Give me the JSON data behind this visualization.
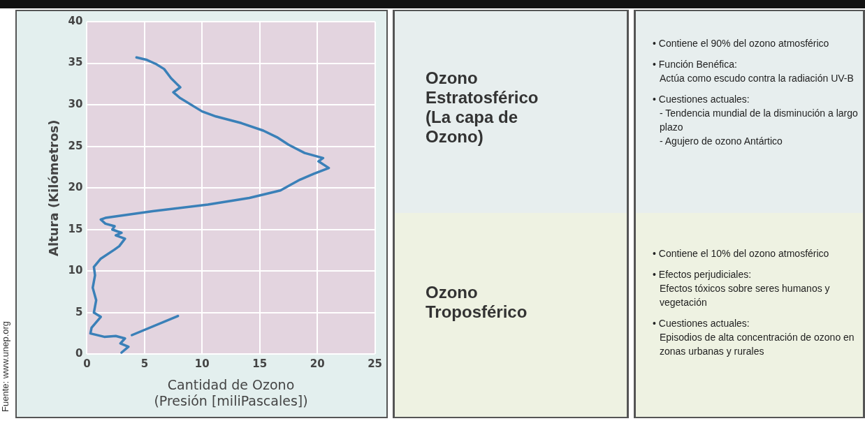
{
  "chart_data": [
    {
      "type": "line",
      "xlabel": "Cantidad de Ozono\n(Presión [miliPascales])",
      "ylabel": "Altura (Kilómetros)",
      "xlim": [
        0,
        25
      ],
      "xticks": [
        0,
        5,
        10,
        15,
        20,
        25
      ],
      "ylim": [
        0,
        40
      ],
      "yticks": [
        0,
        5,
        10,
        15,
        20,
        25,
        30,
        35,
        40
      ],
      "grid": true,
      "legend": false,
      "marker": "none",
      "line_style": "solid",
      "annotations": [
        "Fuente: www.unep.org"
      ],
      "series": [
        {
          "color": "#3a80b8",
          "x": [
            3.0,
            3.6,
            2.9,
            3.3,
            2.5,
            1.5,
            0.3,
            0.4,
            1.2,
            0.6,
            0.8,
            0.5,
            0.7,
            0.6,
            1.2,
            2.4,
            2.8,
            3.3,
            2.5,
            3.0,
            2.2,
            2.4,
            1.6,
            1.2,
            1.6,
            5.7,
            10.5,
            14.1,
            16.8,
            17.7,
            18.5,
            19.7,
            21.0,
            20.1,
            20.5,
            18.9,
            17.5,
            16.5,
            15.3,
            13.4,
            11.2,
            10.0,
            8.1,
            7.5,
            8.1,
            7.3,
            6.7,
            6.0,
            5.2,
            4.3
          ],
          "values": [
            0.2,
            0.9,
            1.3,
            1.9,
            2.2,
            2.1,
            2.5,
            3.2,
            4.5,
            5.0,
            6.5,
            8.0,
            9.5,
            10.5,
            11.5,
            12.6,
            13.0,
            13.9,
            14.3,
            14.6,
            15.0,
            15.4,
            15.7,
            16.2,
            16.4,
            17.2,
            18.0,
            18.8,
            19.7,
            20.4,
            21.0,
            21.7,
            22.4,
            23.2,
            23.6,
            24.2,
            25.2,
            26.1,
            26.9,
            27.8,
            28.6,
            29.2,
            30.8,
            31.5,
            32.1,
            33.2,
            34.3,
            34.9,
            35.4,
            35.7
          ]
        },
        {
          "color": "#3a80b8",
          "x": [
            3.9,
            7.9
          ],
          "values": [
            2.3,
            4.6
          ]
        }
      ]
    },
    {
      "type": "other",
      "title": "Ozono Estratosférico (La capa de Ozono)",
      "annotations": [
        "• Contiene el 90% del ozono atmosférico",
        "• Función Benéfica:\nActúa como escudo contra la radiación UV-B",
        "• Cuestiones actuales:\n- Tendencia mundial de la disminución a largo plazo\n- Agujero de ozono Antártico"
      ]
    },
    {
      "type": "other",
      "title": "Ozono Troposférico",
      "annotations": [
        "• Contiene el 10% del ozono atmosférico",
        "• Efectos perjudiciales:\nEfectos tóxicos sobre seres humanos y vegetación",
        "• Cuestiones actuales:\nEpisodios de alta concentración de ozono en zonas urbanas y rurales"
      ]
    }
  ]
}
